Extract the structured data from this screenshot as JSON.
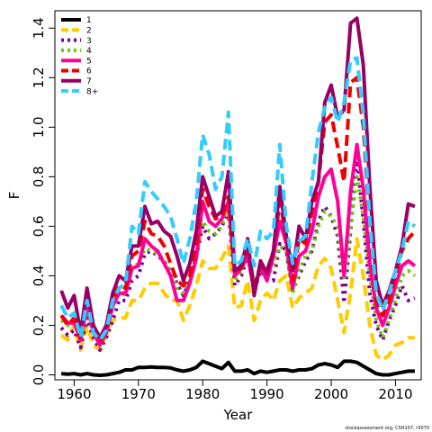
{
  "chart_data": {
    "type": "line",
    "xlabel": "Year",
    "ylabel": "F",
    "xlim": [
      1957,
      2014
    ],
    "ylim": [
      -0.02,
      1.47
    ],
    "xticks": [
      1960,
      1970,
      1980,
      1990,
      2000,
      2010
    ],
    "yticks": [
      0.0,
      0.2,
      0.4,
      0.6,
      0.8,
      1.0,
      1.2,
      1.4
    ],
    "yticklabels": [
      "0.0",
      "0.2",
      "0.4",
      "0.6",
      "0.8",
      "1.0",
      "1.2",
      "1.4"
    ],
    "legend_position": "top-left",
    "x": [
      1958,
      1959,
      1960,
      1961,
      1962,
      1963,
      1964,
      1965,
      1966,
      1967,
      1968,
      1969,
      1970,
      1971,
      1972,
      1973,
      1974,
      1975,
      1976,
      1977,
      1978,
      1979,
      1980,
      1981,
      1982,
      1983,
      1984,
      1985,
      1986,
      1987,
      1988,
      1989,
      1990,
      1991,
      1992,
      1993,
      1994,
      1995,
      1996,
      1997,
      1998,
      1999,
      2000,
      2001,
      2002,
      2003,
      2004,
      2005,
      2006,
      2007,
      2008,
      2009,
      2010,
      2011,
      2012,
      2013
    ],
    "series": [
      {
        "name": "1",
        "color": "#000000",
        "dash": "solid",
        "values": [
          0.005,
          0.003,
          0.005,
          0.0,
          0.005,
          0.0,
          -0.002,
          0.0,
          0.005,
          0.01,
          0.02,
          0.02,
          0.03,
          0.03,
          0.032,
          0.03,
          0.03,
          0.028,
          0.02,
          0.015,
          0.02,
          0.03,
          0.055,
          0.045,
          0.035,
          0.025,
          0.05,
          0.015,
          0.015,
          0.02,
          0.005,
          0.015,
          0.01,
          0.015,
          0.02,
          0.02,
          0.015,
          0.02,
          0.02,
          0.025,
          0.04,
          0.045,
          0.04,
          0.03,
          0.055,
          0.055,
          0.05,
          0.035,
          0.02,
          0.005,
          0.0,
          0.0,
          0.005,
          0.01,
          0.015,
          0.015
        ]
      },
      {
        "name": "2",
        "color": "#FFCC00",
        "dash": "dash",
        "values": [
          0.16,
          0.14,
          0.2,
          0.1,
          0.2,
          0.12,
          0.1,
          0.16,
          0.22,
          0.23,
          0.23,
          0.3,
          0.3,
          0.35,
          0.37,
          0.37,
          0.33,
          0.3,
          0.3,
          0.22,
          0.28,
          0.36,
          0.46,
          0.43,
          0.43,
          0.47,
          0.52,
          0.27,
          0.28,
          0.38,
          0.22,
          0.3,
          0.33,
          0.3,
          0.38,
          0.4,
          0.27,
          0.31,
          0.33,
          0.35,
          0.44,
          0.47,
          0.43,
          0.3,
          0.17,
          0.33,
          0.55,
          0.4,
          0.2,
          0.08,
          0.06,
          0.08,
          0.12,
          0.13,
          0.15,
          0.15
        ]
      },
      {
        "name": "3",
        "color": "#7B0099",
        "dash": "dot",
        "values": [
          0.19,
          0.16,
          0.18,
          0.11,
          0.23,
          0.15,
          0.1,
          0.15,
          0.22,
          0.3,
          0.3,
          0.38,
          0.4,
          0.49,
          0.5,
          0.48,
          0.46,
          0.41,
          0.37,
          0.32,
          0.38,
          0.48,
          0.6,
          0.55,
          0.57,
          0.6,
          0.66,
          0.36,
          0.4,
          0.48,
          0.34,
          0.42,
          0.39,
          0.38,
          0.53,
          0.5,
          0.34,
          0.4,
          0.46,
          0.5,
          0.62,
          0.68,
          0.64,
          0.56,
          0.29,
          0.58,
          0.88,
          0.62,
          0.33,
          0.2,
          0.14,
          0.22,
          0.28,
          0.36,
          0.3,
          0.31
        ]
      },
      {
        "name": "4",
        "color": "#66CC00",
        "dash": "dot",
        "values": [
          0.22,
          0.2,
          0.22,
          0.14,
          0.27,
          0.17,
          0.12,
          0.17,
          0.28,
          0.34,
          0.32,
          0.43,
          0.45,
          0.51,
          0.5,
          0.49,
          0.46,
          0.42,
          0.35,
          0.33,
          0.38,
          0.48,
          0.62,
          0.58,
          0.57,
          0.6,
          0.68,
          0.38,
          0.42,
          0.48,
          0.36,
          0.42,
          0.4,
          0.44,
          0.52,
          0.5,
          0.33,
          0.42,
          0.48,
          0.5,
          0.6,
          0.66,
          0.64,
          0.6,
          0.38,
          0.6,
          0.8,
          0.64,
          0.4,
          0.22,
          0.15,
          0.22,
          0.3,
          0.4,
          0.42,
          0.4
        ]
      },
      {
        "name": "5",
        "color": "#FF0099",
        "dash": "solid",
        "values": [
          0.24,
          0.21,
          0.21,
          0.14,
          0.28,
          0.17,
          0.12,
          0.17,
          0.28,
          0.33,
          0.33,
          0.43,
          0.44,
          0.55,
          0.52,
          0.5,
          0.45,
          0.4,
          0.3,
          0.3,
          0.37,
          0.47,
          0.7,
          0.62,
          0.6,
          0.63,
          0.7,
          0.4,
          0.43,
          0.48,
          0.34,
          0.44,
          0.38,
          0.48,
          0.62,
          0.53,
          0.35,
          0.48,
          0.5,
          0.58,
          0.72,
          0.8,
          0.83,
          0.7,
          0.4,
          0.74,
          0.93,
          0.75,
          0.45,
          0.27,
          0.2,
          0.27,
          0.36,
          0.44,
          0.46,
          0.44
        ]
      },
      {
        "name": "6",
        "color": "#EE0000",
        "dash": "dash",
        "values": [
          0.24,
          0.2,
          0.23,
          0.14,
          0.3,
          0.18,
          0.13,
          0.18,
          0.3,
          0.36,
          0.35,
          0.48,
          0.5,
          0.62,
          0.57,
          0.56,
          0.52,
          0.45,
          0.38,
          0.36,
          0.4,
          0.52,
          0.75,
          0.68,
          0.63,
          0.64,
          0.72,
          0.42,
          0.43,
          0.52,
          0.36,
          0.44,
          0.42,
          0.5,
          0.7,
          0.56,
          0.38,
          0.55,
          0.53,
          0.66,
          0.78,
          1.02,
          1.05,
          0.92,
          0.78,
          1.18,
          1.2,
          1.0,
          0.6,
          0.3,
          0.24,
          0.3,
          0.4,
          0.5,
          0.55,
          0.58
        ]
      },
      {
        "name": "7",
        "color": "#990066",
        "dash": "solid",
        "values": [
          0.34,
          0.27,
          0.32,
          0.17,
          0.35,
          0.2,
          0.15,
          0.2,
          0.33,
          0.4,
          0.38,
          0.52,
          0.52,
          0.68,
          0.61,
          0.62,
          0.58,
          0.56,
          0.48,
          0.38,
          0.45,
          0.58,
          0.8,
          0.72,
          0.64,
          0.66,
          0.82,
          0.42,
          0.44,
          0.55,
          0.32,
          0.46,
          0.41,
          0.5,
          0.76,
          0.56,
          0.42,
          0.6,
          0.55,
          0.7,
          0.78,
          1.1,
          1.17,
          1.04,
          1.07,
          1.42,
          1.44,
          1.25,
          0.76,
          0.38,
          0.28,
          0.34,
          0.42,
          0.52,
          0.69,
          0.68
        ]
      },
      {
        "name": "8+",
        "color": "#33CCFF",
        "dash": "dash",
        "values": [
          0.28,
          0.23,
          0.25,
          0.15,
          0.3,
          0.17,
          0.14,
          0.18,
          0.3,
          0.35,
          0.37,
          0.6,
          0.57,
          0.78,
          0.74,
          0.71,
          0.68,
          0.64,
          0.55,
          0.45,
          0.55,
          0.7,
          0.97,
          0.89,
          0.75,
          0.8,
          1.06,
          0.44,
          0.46,
          0.55,
          0.44,
          0.58,
          0.55,
          0.58,
          0.93,
          0.6,
          0.45,
          0.54,
          0.56,
          0.78,
          0.98,
          1.08,
          1.12,
          1.02,
          1.1,
          1.27,
          1.28,
          1.05,
          0.62,
          0.33,
          0.26,
          0.33,
          0.42,
          0.5,
          0.62,
          0.6
        ]
      }
    ]
  },
  "credit_text": "stockassessment.org, CSH107, r3070"
}
